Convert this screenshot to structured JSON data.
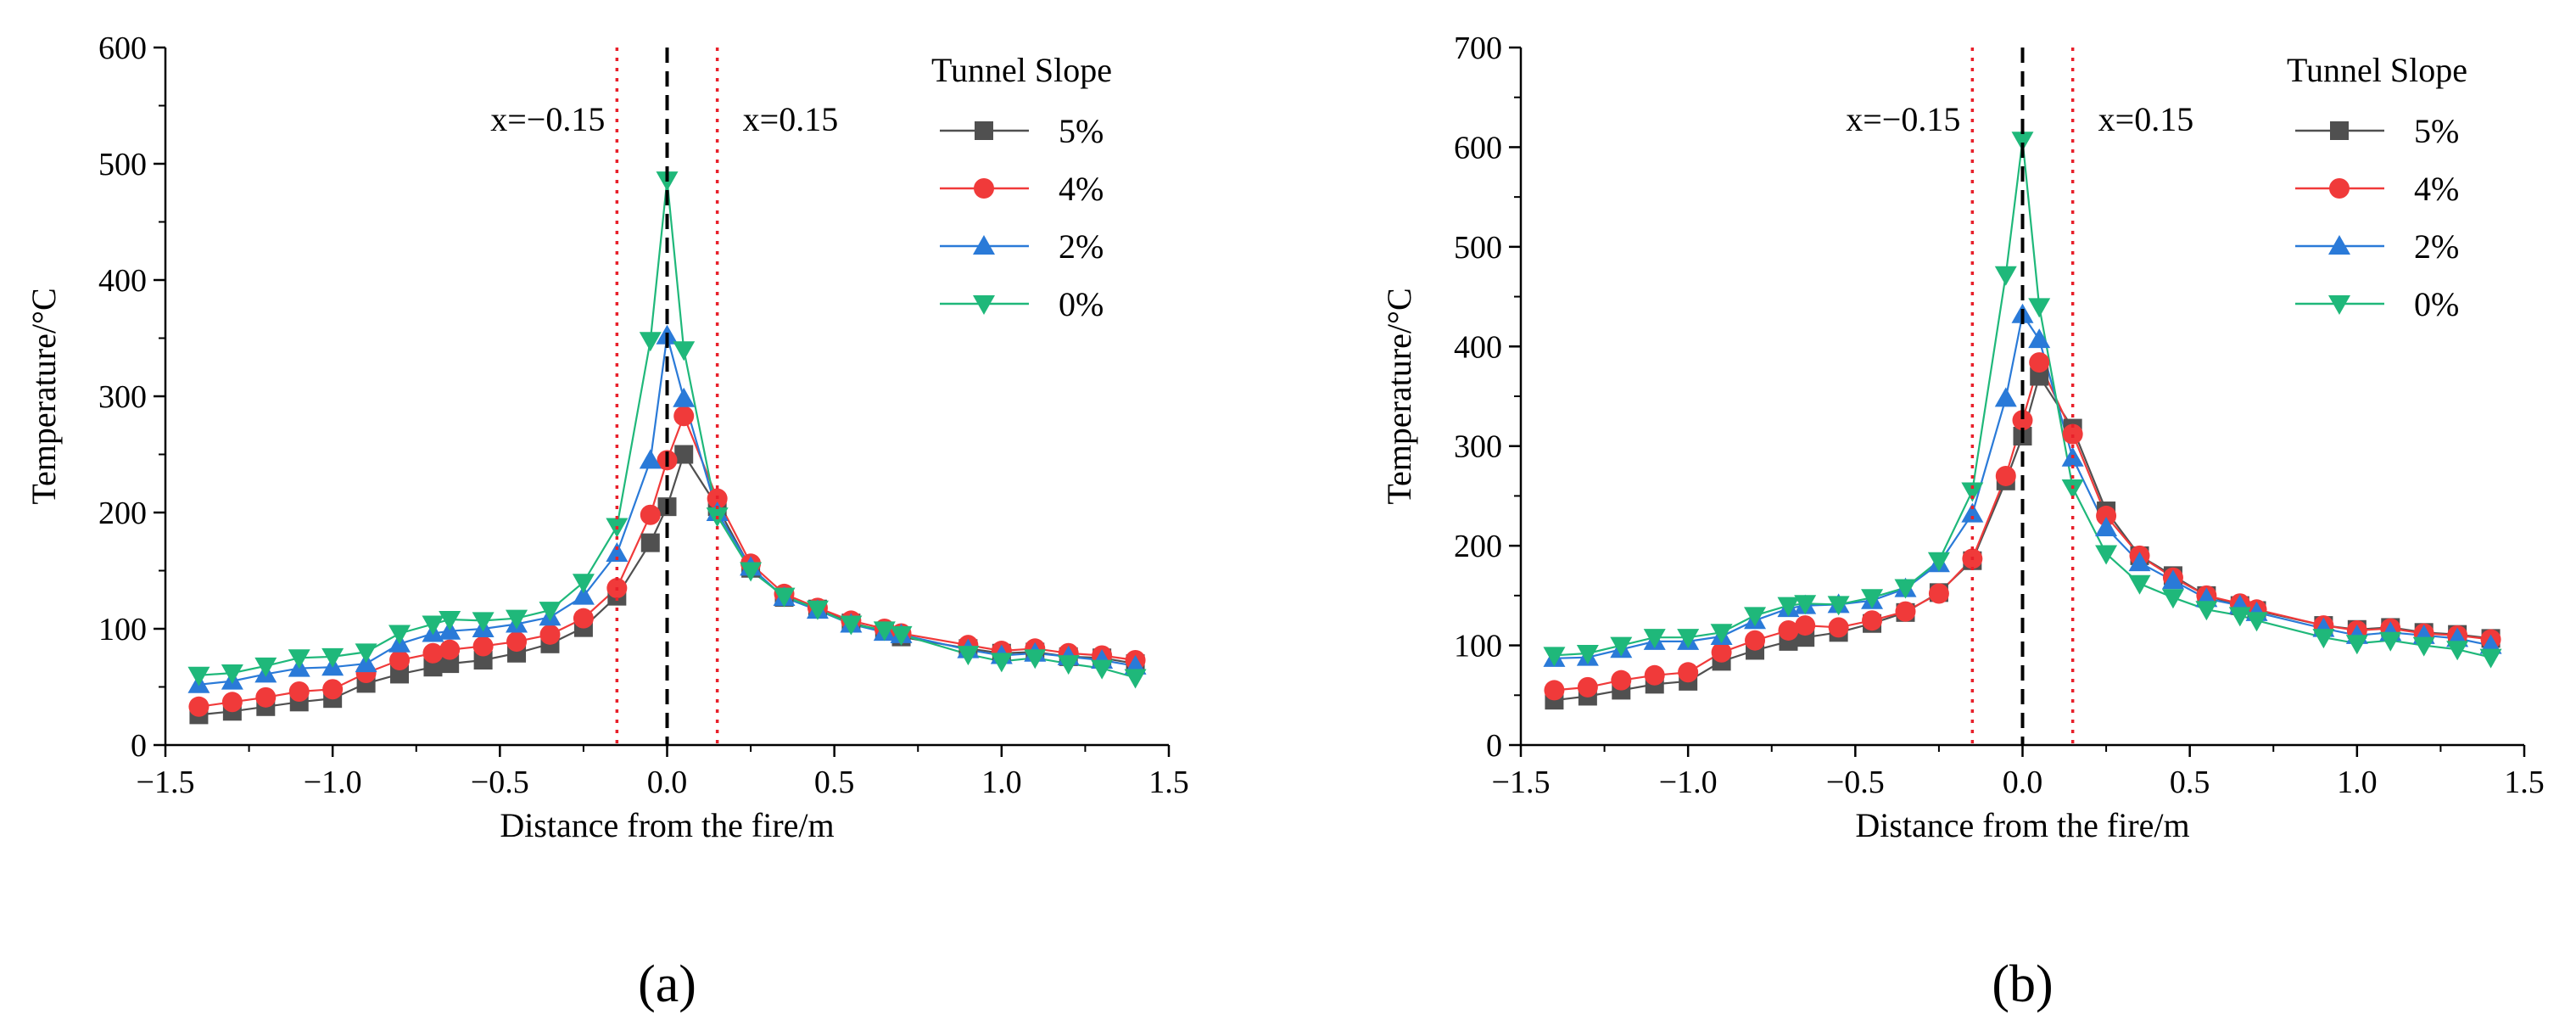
{
  "chart_data": [
    {
      "type": "line",
      "panel_label": "(a)",
      "xlabel": "Distance from the fire/m",
      "ylabel": "Temperature/°C",
      "xlim": [
        -1.5,
        1.5
      ],
      "ylim": [
        0,
        600
      ],
      "xticks": [
        -1.5,
        -1.0,
        -0.5,
        0.0,
        0.5,
        1.0,
        1.5
      ],
      "xtick_labels": [
        "−1.5",
        "−1.0",
        "−0.5",
        "0.0",
        "0.5",
        "1.0",
        "1.5"
      ],
      "yticks": [
        0,
        100,
        200,
        300,
        400,
        500,
        600
      ],
      "ytick_labels": [
        "0",
        "100",
        "200",
        "300",
        "400",
        "500",
        "600"
      ],
      "legend_title": "Tunnel Slope",
      "legend_position": "top-right",
      "grid": false,
      "ref_lines": [
        {
          "x": -0.15,
          "label": "x=−0.15",
          "style": "dotted",
          "color": "#e8202a"
        },
        {
          "x": 0.0,
          "label": "",
          "style": "dashed",
          "color": "#000000"
        },
        {
          "x": 0.15,
          "label": "x=0.15",
          "style": "dotted",
          "color": "#e8202a"
        }
      ],
      "series": [
        {
          "name": "5%",
          "marker": "square",
          "color": "#505050",
          "x": [
            -1.4,
            -1.3,
            -1.2,
            -1.1,
            -1.0,
            -0.9,
            -0.8,
            -0.7,
            -0.65,
            -0.55,
            -0.45,
            -0.35,
            -0.25,
            -0.15,
            -0.05,
            0.0,
            0.05,
            0.15,
            0.25,
            0.35,
            0.45,
            0.55,
            0.65,
            0.7,
            0.9,
            1.0,
            1.1,
            1.2,
            1.3,
            1.4
          ],
          "values": [
            26,
            29,
            33,
            37,
            40,
            53,
            61,
            67,
            70,
            73,
            79,
            87,
            101,
            128,
            174,
            205,
            250,
            205,
            152,
            127,
            117,
            105,
            98,
            93,
            83,
            79,
            80,
            76,
            75,
            70
          ]
        },
        {
          "name": "4%",
          "marker": "circle",
          "color": "#f03a3a",
          "x": [
            -1.4,
            -1.3,
            -1.2,
            -1.1,
            -1.0,
            -0.9,
            -0.8,
            -0.7,
            -0.65,
            -0.55,
            -0.45,
            -0.35,
            -0.25,
            -0.15,
            -0.05,
            0.0,
            0.05,
            0.15,
            0.25,
            0.35,
            0.45,
            0.55,
            0.65,
            0.7,
            0.9,
            1.0,
            1.1,
            1.2,
            1.3,
            1.4
          ],
          "values": [
            33,
            37,
            41,
            46,
            48,
            62,
            73,
            79,
            82,
            85,
            89,
            95,
            109,
            135,
            198,
            245,
            283,
            212,
            156,
            130,
            118,
            107,
            100,
            96,
            86,
            81,
            83,
            79,
            77,
            73
          ]
        },
        {
          "name": "2%",
          "marker": "triangle-up",
          "color": "#2a7ad8",
          "x": [
            -1.4,
            -1.3,
            -1.2,
            -1.1,
            -1.0,
            -0.9,
            -0.8,
            -0.7,
            -0.65,
            -0.55,
            -0.45,
            -0.35,
            -0.25,
            -0.15,
            -0.05,
            0.0,
            0.05,
            0.15,
            0.25,
            0.35,
            0.45,
            0.55,
            0.65,
            0.7,
            0.9,
            1.0,
            1.1,
            1.2,
            1.3,
            1.4
          ],
          "values": [
            52,
            55,
            61,
            66,
            67,
            70,
            87,
            96,
            98,
            100,
            104,
            110,
            128,
            165,
            245,
            352,
            298,
            200,
            153,
            127,
            116,
            104,
            97,
            95,
            82,
            77,
            79,
            76,
            73,
            68
          ]
        },
        {
          "name": "0%",
          "marker": "triangle-down",
          "color": "#1fb87a",
          "x": [
            -1.4,
            -1.3,
            -1.2,
            -1.1,
            -1.0,
            -0.9,
            -0.8,
            -0.7,
            -0.65,
            -0.55,
            -0.45,
            -0.35,
            -0.25,
            -0.15,
            -0.05,
            0.0,
            0.05,
            0.15,
            0.25,
            0.35,
            0.45,
            0.55,
            0.65,
            0.7,
            0.9,
            1.0,
            1.1,
            1.2,
            1.3,
            1.4
          ],
          "values": [
            60,
            62,
            68,
            75,
            76,
            80,
            96,
            104,
            108,
            107,
            109,
            116,
            140,
            188,
            348,
            486,
            340,
            197,
            150,
            128,
            117,
            104,
            99,
            95,
            78,
            72,
            75,
            70,
            66,
            58
          ]
        }
      ]
    },
    {
      "type": "line",
      "panel_label": "(b)",
      "xlabel": "Distance from the fire/m",
      "ylabel": "Temperature/°C",
      "xlim": [
        -1.5,
        1.5
      ],
      "ylim": [
        0,
        700
      ],
      "xticks": [
        -1.5,
        -1.0,
        -0.5,
        0.0,
        0.5,
        1.0,
        1.5
      ],
      "xtick_labels": [
        "−1.5",
        "−1.0",
        "−0.5",
        "0.0",
        "0.5",
        "1.0",
        "1.5"
      ],
      "yticks": [
        0,
        100,
        200,
        300,
        400,
        500,
        600,
        700
      ],
      "ytick_labels": [
        "0",
        "100",
        "200",
        "300",
        "400",
        "500",
        "600",
        "700"
      ],
      "legend_title": "Tunnel Slope",
      "legend_position": "top-right",
      "grid": false,
      "ref_lines": [
        {
          "x": -0.15,
          "label": "x=−0.15",
          "style": "dotted",
          "color": "#e8202a"
        },
        {
          "x": 0.0,
          "label": "",
          "style": "dashed",
          "color": "#000000"
        },
        {
          "x": 0.15,
          "label": "x=0.15",
          "style": "dotted",
          "color": "#e8202a"
        }
      ],
      "series": [
        {
          "name": "5%",
          "marker": "square",
          "color": "#505050",
          "x": [
            -1.4,
            -1.3,
            -1.2,
            -1.1,
            -1.0,
            -0.9,
            -0.8,
            -0.7,
            -0.65,
            -0.55,
            -0.45,
            -0.35,
            -0.25,
            -0.15,
            -0.05,
            0.0,
            0.05,
            0.15,
            0.25,
            0.35,
            0.45,
            0.55,
            0.65,
            0.7,
            0.9,
            1.0,
            1.1,
            1.2,
            1.3,
            1.4
          ],
          "values": [
            45,
            49,
            55,
            61,
            64,
            84,
            95,
            104,
            108,
            113,
            122,
            133,
            153,
            185,
            265,
            310,
            370,
            318,
            235,
            190,
            170,
            150,
            140,
            135,
            120,
            116,
            118,
            113,
            111,
            107
          ]
        },
        {
          "name": "4%",
          "marker": "circle",
          "color": "#f03a3a",
          "x": [
            -1.4,
            -1.3,
            -1.2,
            -1.1,
            -1.0,
            -0.9,
            -0.8,
            -0.7,
            -0.65,
            -0.55,
            -0.45,
            -0.35,
            -0.25,
            -0.15,
            -0.05,
            0.0,
            0.05,
            0.15,
            0.25,
            0.35,
            0.45,
            0.55,
            0.65,
            0.7,
            0.9,
            1.0,
            1.1,
            1.2,
            1.3,
            1.4
          ],
          "values": [
            55,
            58,
            65,
            70,
            73,
            93,
            105,
            115,
            120,
            118,
            125,
            134,
            152,
            187,
            270,
            326,
            384,
            312,
            230,
            190,
            168,
            150,
            142,
            136,
            120,
            115,
            117,
            112,
            110,
            106
          ]
        },
        {
          "name": "2%",
          "marker": "triangle-up",
          "color": "#2a7ad8",
          "x": [
            -1.4,
            -1.3,
            -1.2,
            -1.1,
            -1.0,
            -0.9,
            -0.8,
            -0.7,
            -0.65,
            -0.55,
            -0.45,
            -0.35,
            -0.25,
            -0.15,
            -0.05,
            0.0,
            0.05,
            0.15,
            0.25,
            0.35,
            0.45,
            0.55,
            0.65,
            0.7,
            0.9,
            1.0,
            1.1,
            1.2,
            1.3,
            1.4
          ],
          "values": [
            87,
            88,
            96,
            104,
            104,
            109,
            125,
            137,
            140,
            141,
            145,
            157,
            182,
            232,
            348,
            432,
            407,
            288,
            218,
            183,
            165,
            147,
            140,
            133,
            117,
            110,
            113,
            110,
            107,
            100
          ]
        },
        {
          "name": "0%",
          "marker": "triangle-down",
          "color": "#1fb87a",
          "x": [
            -1.4,
            -1.3,
            -1.2,
            -1.1,
            -1.0,
            -0.9,
            -0.8,
            -0.7,
            -0.65,
            -0.55,
            -0.45,
            -0.35,
            -0.25,
            -0.15,
            -0.05,
            0.0,
            0.05,
            0.15,
            0.25,
            0.35,
            0.45,
            0.55,
            0.65,
            0.7,
            0.9,
            1.0,
            1.1,
            1.2,
            1.3,
            1.4
          ],
          "values": [
            90,
            92,
            100,
            108,
            108,
            113,
            130,
            140,
            142,
            141,
            148,
            158,
            185,
            255,
            472,
            607,
            440,
            258,
            192,
            162,
            148,
            136,
            130,
            125,
            108,
            102,
            105,
            100,
            96,
            88
          ]
        }
      ]
    }
  ]
}
